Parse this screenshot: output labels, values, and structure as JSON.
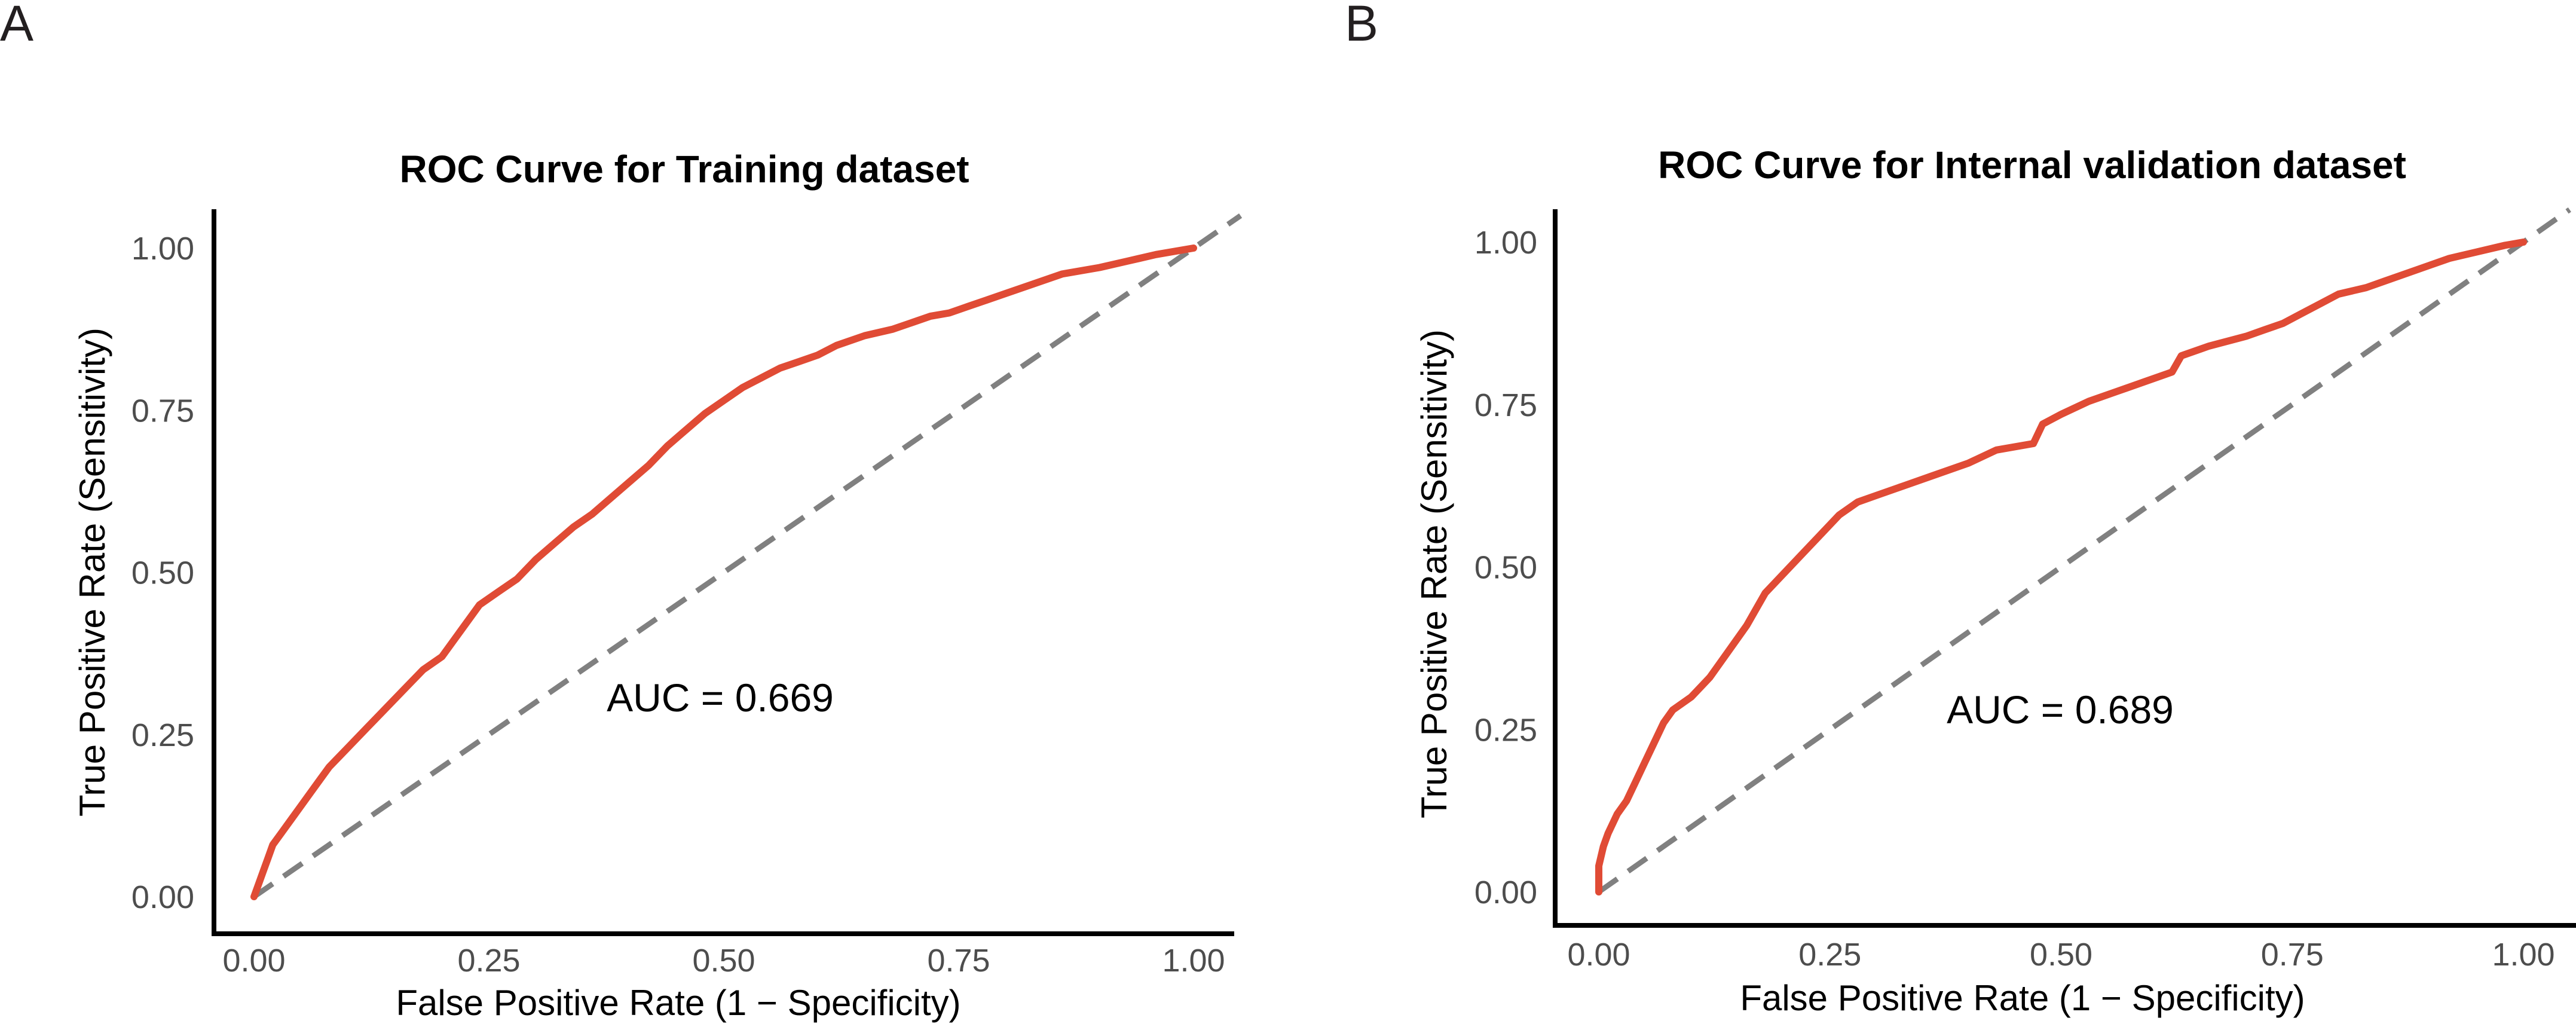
{
  "chart_data": [
    {
      "panel": "A",
      "type": "line",
      "title": "ROC Curve for Training dataset",
      "xlabel": "False Positive Rate (1 − Specificity)",
      "ylabel": "True Positive Rate (Sensitivity)",
      "xlim": [
        0,
        1
      ],
      "ylim": [
        0,
        1
      ],
      "xticks": [
        "0.00",
        "0.25",
        "0.50",
        "0.75",
        "1.00"
      ],
      "yticks": [
        "0.00",
        "0.25",
        "0.50",
        "0.75",
        "1.00"
      ],
      "annotation": "AUC = 0.669",
      "colors": {
        "roc": "#e04b35",
        "reference": "#808080",
        "axis": "#000000"
      },
      "series": [
        {
          "name": "ROC",
          "x": [
            0,
            0.005,
            0.01,
            0.015,
            0.02,
            0.03,
            0.04,
            0.05,
            0.06,
            0.07,
            0.08,
            0.1,
            0.12,
            0.14,
            0.16,
            0.18,
            0.2,
            0.22,
            0.24,
            0.26,
            0.28,
            0.3,
            0.32,
            0.34,
            0.36,
            0.38,
            0.4,
            0.42,
            0.44,
            0.46,
            0.48,
            0.5,
            0.52,
            0.54,
            0.56,
            0.58,
            0.6,
            0.62,
            0.65,
            0.68,
            0.7,
            0.72,
            0.74,
            0.76,
            0.78,
            0.8,
            0.83,
            0.86,
            0.9,
            0.93,
            0.96,
            1.0
          ],
          "y": [
            0,
            0.02,
            0.04,
            0.06,
            0.08,
            0.1,
            0.12,
            0.14,
            0.16,
            0.18,
            0.2,
            0.23,
            0.26,
            0.29,
            0.32,
            0.35,
            0.37,
            0.41,
            0.45,
            0.47,
            0.49,
            0.52,
            0.545,
            0.57,
            0.59,
            0.615,
            0.64,
            0.665,
            0.695,
            0.72,
            0.745,
            0.765,
            0.785,
            0.8,
            0.815,
            0.825,
            0.835,
            0.85,
            0.865,
            0.875,
            0.885,
            0.895,
            0.9,
            0.91,
            0.92,
            0.93,
            0.945,
            0.96,
            0.97,
            0.98,
            0.99,
            1.0
          ]
        },
        {
          "name": "Reference",
          "x": [
            0,
            1.05
          ],
          "y": [
            0,
            1.05
          ]
        }
      ]
    },
    {
      "panel": "B",
      "type": "line",
      "title": "ROC Curve for Internal validation dataset",
      "xlabel": "False Positive Rate (1 − Specificity)",
      "ylabel": "True Positive Rate (Sensitivity)",
      "xlim": [
        0,
        1
      ],
      "ylim": [
        0,
        1
      ],
      "xticks": [
        "0.00",
        "0.25",
        "0.50",
        "0.75",
        "1.00"
      ],
      "yticks": [
        "0.00",
        "0.25",
        "0.50",
        "0.75",
        "1.00"
      ],
      "annotation": "AUC = 0.689",
      "colors": {
        "roc": "#e04b35",
        "reference": "#808080",
        "axis": "#000000"
      },
      "series": [
        {
          "name": "ROC",
          "x": [
            0,
            0.0,
            0.005,
            0.01,
            0.02,
            0.03,
            0.04,
            0.05,
            0.06,
            0.07,
            0.08,
            0.1,
            0.12,
            0.14,
            0.16,
            0.18,
            0.2,
            0.22,
            0.24,
            0.26,
            0.28,
            0.3,
            0.33,
            0.36,
            0.4,
            0.43,
            0.47,
            0.48,
            0.5,
            0.53,
            0.56,
            0.59,
            0.62,
            0.63,
            0.66,
            0.7,
            0.72,
            0.74,
            0.76,
            0.78,
            0.8,
            0.83,
            0.85,
            0.88,
            0.9,
            0.92,
            0.95,
            0.98,
            1.0
          ],
          "y": [
            0,
            0.04,
            0.07,
            0.09,
            0.12,
            0.14,
            0.17,
            0.2,
            0.23,
            0.26,
            0.28,
            0.3,
            0.33,
            0.37,
            0.41,
            0.46,
            0.49,
            0.52,
            0.55,
            0.58,
            0.6,
            0.61,
            0.625,
            0.64,
            0.66,
            0.68,
            0.69,
            0.72,
            0.735,
            0.755,
            0.77,
            0.785,
            0.8,
            0.825,
            0.84,
            0.855,
            0.865,
            0.875,
            0.89,
            0.905,
            0.92,
            0.93,
            0.94,
            0.955,
            0.965,
            0.975,
            0.985,
            0.995,
            1.0
          ]
        },
        {
          "name": "Reference",
          "x": [
            0,
            1.05
          ],
          "y": [
            0,
            1.05
          ]
        }
      ]
    }
  ]
}
